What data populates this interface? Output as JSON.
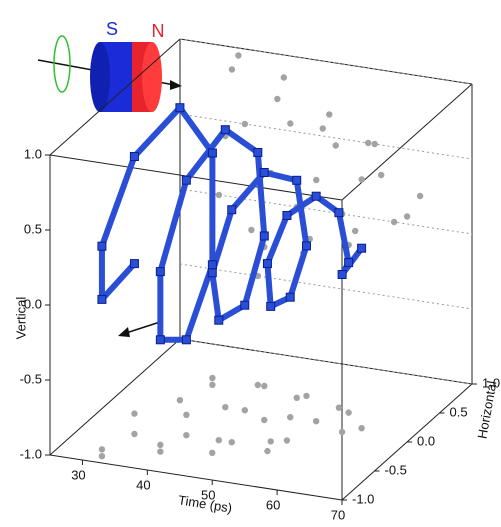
{
  "chart_data": {
    "type": "line3d",
    "magnet_labels": {
      "south": "S",
      "north": "N"
    },
    "xlabel": "Time (ps)",
    "ylabel": "Horizontal",
    "zlabel": "Vertical",
    "xlim": [
      25,
      70
    ],
    "xticks": [
      30,
      40,
      50,
      60,
      70
    ],
    "ylim": [
      -1,
      1
    ],
    "yticks": [
      {
        "value": -1,
        "label": "-1.0"
      },
      -0.5,
      {
        "value": 0,
        "label": "0.0"
      },
      0.5,
      {
        "value": 1,
        "label": "1.0"
      }
    ],
    "zlim": [
      -1,
      1
    ],
    "zticks": [
      {
        "value": -1,
        "label": "-1.0"
      },
      -0.5,
      {
        "value": 0,
        "label": "0.0"
      },
      0.5,
      {
        "value": 1,
        "label": "1.0"
      }
    ],
    "projection_color": "#a3a3a3",
    "series": [
      {
        "color": "#2a4fd6",
        "x": [
          30,
          31,
          32,
          33,
          34,
          35,
          36,
          37,
          38,
          39,
          40,
          41,
          42,
          43,
          44,
          45,
          46,
          47,
          48,
          49,
          50,
          51,
          52,
          53,
          54,
          55,
          56,
          58,
          60,
          62
        ],
        "y": [
          -0.2,
          -0.8,
          -0.9,
          -0.5,
          0.1,
          0.5,
          0.4,
          -0.1,
          -0.6,
          -0.7,
          -0.4,
          0.1,
          0.5,
          0.5,
          0.1,
          -0.4,
          -0.6,
          -0.4,
          0.0,
          0.4,
          0.45,
          0.1,
          -0.3,
          -0.45,
          -0.25,
          0.1,
          0.35,
          0.3,
          0.0,
          0.1
        ],
        "z": [
          0.0,
          0.0,
          0.4,
          0.85,
          0.95,
          0.5,
          -0.2,
          -0.5,
          -0.3,
          0.2,
          0.7,
          0.85,
          0.55,
          0.0,
          -0.3,
          -0.2,
          0.2,
          0.55,
          0.65,
          0.45,
          0.0,
          -0.2,
          -0.1,
          0.25,
          0.5,
          0.5,
          0.3,
          0.0,
          0.05,
          0.2
        ]
      }
    ]
  }
}
